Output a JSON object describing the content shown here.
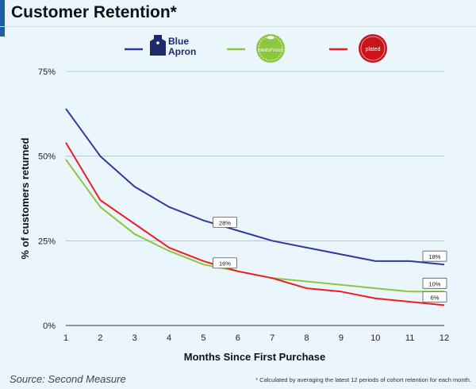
{
  "title": "Customer Retention*",
  "source": "Source: Second Measure",
  "footnote": "* Calculated by averaging the latest 12 periods of cohort retention for each month.",
  "brands": {
    "blue_apron": {
      "line1": "Blue",
      "line2": "Apron",
      "icon": "apron-logo-icon"
    },
    "hellofresh": {
      "text": "HelloFresh",
      "icon": "hellofresh-leaf-logo-icon"
    },
    "plated": {
      "text": "plated",
      "icon": "plated-badge-logo-icon"
    }
  },
  "chart_data": {
    "type": "line",
    "x": [
      1,
      2,
      3,
      4,
      5,
      6,
      7,
      8,
      9,
      10,
      11,
      12
    ],
    "xlabel": "Months Since First Purchase",
    "ylabel": "% of customers returned",
    "xlim": [
      1,
      12
    ],
    "ylim": [
      0,
      75
    ],
    "yticks": [
      0,
      25,
      50,
      75
    ],
    "ytick_labels": [
      "0%",
      "25%",
      "50%",
      "75%"
    ],
    "xticks": [
      "1",
      "2",
      "3",
      "4",
      "5",
      "6",
      "7",
      "8",
      "9",
      "10",
      "11",
      "12"
    ],
    "legend_position": "top",
    "series": [
      {
        "key": "blue_apron",
        "color": "#2e3a9c",
        "values": [
          64,
          50,
          41,
          35,
          31,
          28,
          25,
          23,
          21,
          19,
          19,
          18
        ]
      },
      {
        "key": "hellofresh",
        "color": "#8dc63f",
        "values": [
          49,
          35,
          27,
          22,
          18,
          16,
          14,
          13,
          12,
          11,
          10,
          10
        ]
      },
      {
        "key": "plated",
        "color": "#ee1c24",
        "values": [
          54,
          37,
          30,
          23,
          19,
          16,
          14,
          11,
          10,
          8,
          7,
          6
        ]
      }
    ],
    "annotations": [
      {
        "x": 5.6,
        "y": 28,
        "text": "28%"
      },
      {
        "x": 5.6,
        "y": 16,
        "text": "16%"
      },
      {
        "x": 11.7,
        "y": 18,
        "text": "18%"
      },
      {
        "x": 11.7,
        "y": 10,
        "text": "10%"
      },
      {
        "x": 11.7,
        "y": 6,
        "text": "6%"
      }
    ]
  }
}
